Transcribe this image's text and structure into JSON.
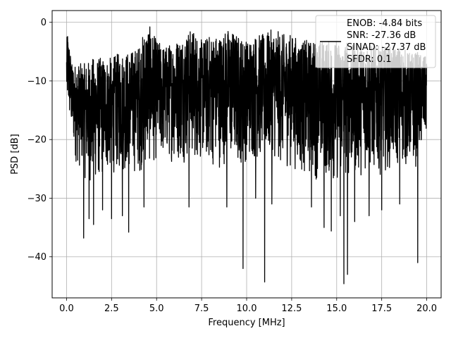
{
  "chart_data": {
    "type": "line",
    "title": "",
    "xlabel": "Frequency [MHz]",
    "ylabel": "PSD [dB]",
    "xlim": [
      -0.8,
      20.8
    ],
    "ylim": [
      -47,
      2
    ],
    "xticks": [
      0.0,
      2.5,
      5.0,
      7.5,
      10.0,
      12.5,
      15.0,
      17.5,
      20.0
    ],
    "xtick_labels": [
      "0.0",
      "2.5",
      "5.0",
      "7.5",
      "10.0",
      "12.5",
      "15.0",
      "17.5",
      "20.0"
    ],
    "yticks": [
      0,
      -10,
      -20,
      -30,
      -40
    ],
    "ytick_labels": [
      "0",
      "−10",
      "−20",
      "−30",
      "−40"
    ],
    "grid": true,
    "line_color": "#000000",
    "legend": {
      "placement": "top-right",
      "entries": [
        "ENOB: -4.84 bits",
        "SNR: -27.36 dB",
        "SINAD: -27.37 dB",
        "SFDR: 0.1"
      ]
    },
    "series": [
      {
        "x_range": [
          0,
          20
        ],
        "upper_envelope": [
          [
            0.0,
            -4
          ],
          [
            0.05,
            -1
          ],
          [
            0.3,
            -7
          ],
          [
            0.6,
            -7
          ],
          [
            1.0,
            -7
          ],
          [
            1.5,
            -6
          ],
          [
            2.0,
            -6
          ],
          [
            2.5,
            -6
          ],
          [
            3.0,
            -5
          ],
          [
            3.5,
            -5
          ],
          [
            4.0,
            -4
          ],
          [
            4.5,
            0
          ],
          [
            5.0,
            -3
          ],
          [
            5.5,
            -4
          ],
          [
            6.0,
            -3
          ],
          [
            6.5,
            -2
          ],
          [
            7.0,
            -1
          ],
          [
            7.5,
            -3
          ],
          [
            8.0,
            -2
          ],
          [
            8.5,
            -2
          ],
          [
            9.0,
            -1
          ],
          [
            9.5,
            -2
          ],
          [
            10.0,
            -3
          ],
          [
            10.5,
            -2
          ],
          [
            11.0,
            -2
          ],
          [
            11.5,
            -1
          ],
          [
            12.0,
            -2
          ],
          [
            12.5,
            -2
          ],
          [
            13.0,
            -3
          ],
          [
            13.5,
            -3
          ],
          [
            14.0,
            -3
          ],
          [
            14.5,
            -3
          ],
          [
            15.0,
            -3
          ],
          [
            15.5,
            -3
          ],
          [
            16.0,
            -4
          ],
          [
            16.5,
            -3
          ],
          [
            17.0,
            -4
          ],
          [
            17.5,
            -4
          ],
          [
            18.0,
            -4
          ],
          [
            18.5,
            -4
          ],
          [
            19.0,
            -5
          ],
          [
            19.5,
            -5
          ],
          [
            20.0,
            -6
          ]
        ],
        "lower_envelope": [
          [
            0.0,
            -15
          ],
          [
            0.5,
            -24
          ],
          [
            1.0,
            -27
          ],
          [
            1.5,
            -28
          ],
          [
            2.0,
            -27
          ],
          [
            2.5,
            -26
          ],
          [
            3.0,
            -26
          ],
          [
            3.5,
            -26
          ],
          [
            4.0,
            -26
          ],
          [
            4.5,
            -25
          ],
          [
            5.0,
            -24
          ],
          [
            5.5,
            -24
          ],
          [
            6.0,
            -24
          ],
          [
            6.5,
            -24
          ],
          [
            7.0,
            -24
          ],
          [
            7.5,
            -24
          ],
          [
            8.0,
            -25
          ],
          [
            8.5,
            -25
          ],
          [
            9.0,
            -24
          ],
          [
            9.5,
            -25
          ],
          [
            10.0,
            -24
          ],
          [
            10.5,
            -24
          ],
          [
            11.0,
            -24
          ],
          [
            11.5,
            -24
          ],
          [
            12.0,
            -25
          ],
          [
            12.5,
            -25
          ],
          [
            13.0,
            -26
          ],
          [
            13.5,
            -27
          ],
          [
            14.0,
            -27
          ],
          [
            14.5,
            -27
          ],
          [
            15.0,
            -28
          ],
          [
            15.5,
            -27
          ],
          [
            16.0,
            -27
          ],
          [
            16.5,
            -26
          ],
          [
            17.0,
            -26
          ],
          [
            17.5,
            -26
          ],
          [
            18.0,
            -25
          ],
          [
            18.5,
            -25
          ],
          [
            19.0,
            -25
          ],
          [
            19.5,
            -25
          ],
          [
            20.0,
            -20
          ]
        ],
        "deep_nulls": [
          [
            0.95,
            -36.8
          ],
          [
            1.25,
            -33.5
          ],
          [
            1.5,
            -34.5
          ],
          [
            2.0,
            -32
          ],
          [
            2.5,
            -33.5
          ],
          [
            3.1,
            -33
          ],
          [
            3.45,
            -35.8
          ],
          [
            4.3,
            -31.5
          ],
          [
            6.8,
            -31.5
          ],
          [
            8.9,
            -31.5
          ],
          [
            9.8,
            -42
          ],
          [
            10.5,
            -30
          ],
          [
            11.0,
            -44.3
          ],
          [
            11.4,
            -31
          ],
          [
            13.6,
            -31.5
          ],
          [
            14.3,
            -35
          ],
          [
            14.7,
            -35.6
          ],
          [
            15.2,
            -33
          ],
          [
            15.4,
            -44.6
          ],
          [
            15.6,
            -43
          ],
          [
            16.0,
            -34
          ],
          [
            16.8,
            -33
          ],
          [
            17.5,
            -32
          ],
          [
            18.5,
            -31
          ],
          [
            19.5,
            -41
          ]
        ]
      }
    ]
  }
}
